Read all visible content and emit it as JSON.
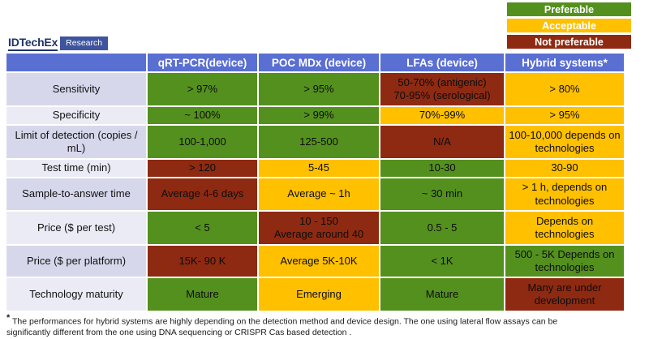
{
  "colors": {
    "preferable_green": "#54901E",
    "acceptable_yellow": "#FFC000",
    "not_preferable_red": "#8E2A12",
    "header_blue": "#5A6FD2",
    "row_label_dark": "#D7D7EC",
    "row_label_light": "#EBEBF6"
  },
  "logo": {
    "brand": "IDTechEx",
    "sub": "Research"
  },
  "legend": {
    "items": [
      {
        "label": "Preferable",
        "rating": "green"
      },
      {
        "label": "Acceptable",
        "rating": "yellow"
      },
      {
        "label": "Not preferable",
        "rating": "red"
      }
    ]
  },
  "table": {
    "columns": [
      "",
      "qRT-PCR(device)",
      "POC MDx (device)",
      "LFAs (device)",
      "Hybrid systems*"
    ],
    "rows": [
      {
        "label": "Sensitivity",
        "cells": [
          {
            "text": "> 97%",
            "rating": "green"
          },
          {
            "text": "> 95%",
            "rating": "green"
          },
          {
            "text": "50-70% (antigenic)\n70-95% (serological)",
            "rating": "red"
          },
          {
            "text": "> 80%",
            "rating": "yellow"
          }
        ]
      },
      {
        "label": "Specificity",
        "cells": [
          {
            "text": "~ 100%",
            "rating": "green"
          },
          {
            "text": "> 99%",
            "rating": "green"
          },
          {
            "text": "70%-99%",
            "rating": "yellow"
          },
          {
            "text": "> 95%",
            "rating": "yellow"
          }
        ]
      },
      {
        "label": "Limit of detection (copies / mL)",
        "cells": [
          {
            "text": "100-1,000",
            "rating": "green"
          },
          {
            "text": "125-500",
            "rating": "green"
          },
          {
            "text": "N/A",
            "rating": "red"
          },
          {
            "text": "100-10,000 depends on technologies",
            "rating": "yellow"
          }
        ]
      },
      {
        "label": "Test time (min)",
        "cells": [
          {
            "text": "> 120",
            "rating": "red"
          },
          {
            "text": "5-45",
            "rating": "yellow"
          },
          {
            "text": "10-30",
            "rating": "green"
          },
          {
            "text": "30-90",
            "rating": "yellow"
          }
        ]
      },
      {
        "label": "Sample-to-answer time",
        "cells": [
          {
            "text": "Average 4-6 days",
            "rating": "red"
          },
          {
            "text": "Average ~ 1h",
            "rating": "yellow"
          },
          {
            "text": "~ 30 min",
            "rating": "green"
          },
          {
            "text": "> 1 h, depends on technologies",
            "rating": "yellow"
          }
        ]
      },
      {
        "label": "Price ($ per test)",
        "cells": [
          {
            "text": "< 5",
            "rating": "green"
          },
          {
            "text": "10 - 150\nAverage around 40",
            "rating": "red"
          },
          {
            "text": "0.5 - 5",
            "rating": "green"
          },
          {
            "text": "Depends on technologies",
            "rating": "yellow"
          }
        ]
      },
      {
        "label": "Price ($ per platform)",
        "cells": [
          {
            "text": "15K- 90 K",
            "rating": "red"
          },
          {
            "text": "Average 5K-10K",
            "rating": "yellow"
          },
          {
            "text": "< 1K",
            "rating": "green"
          },
          {
            "text": "500 - 5K Depends on technologies",
            "rating": "green"
          }
        ]
      },
      {
        "label": "Technology maturity",
        "cells": [
          {
            "text": "Mature",
            "rating": "green"
          },
          {
            "text": "Emerging",
            "rating": "yellow"
          },
          {
            "text": "Mature",
            "rating": "green"
          },
          {
            "text": "Many are under development",
            "rating": "red"
          }
        ]
      }
    ]
  },
  "footnote": {
    "asterisk": "*",
    "text": " The performances for hybrid systems are highly depending on the detection method and device design. The one using lateral flow assays can be significantly different from the one using DNA sequencing or CRISPR Cas based detection ."
  }
}
